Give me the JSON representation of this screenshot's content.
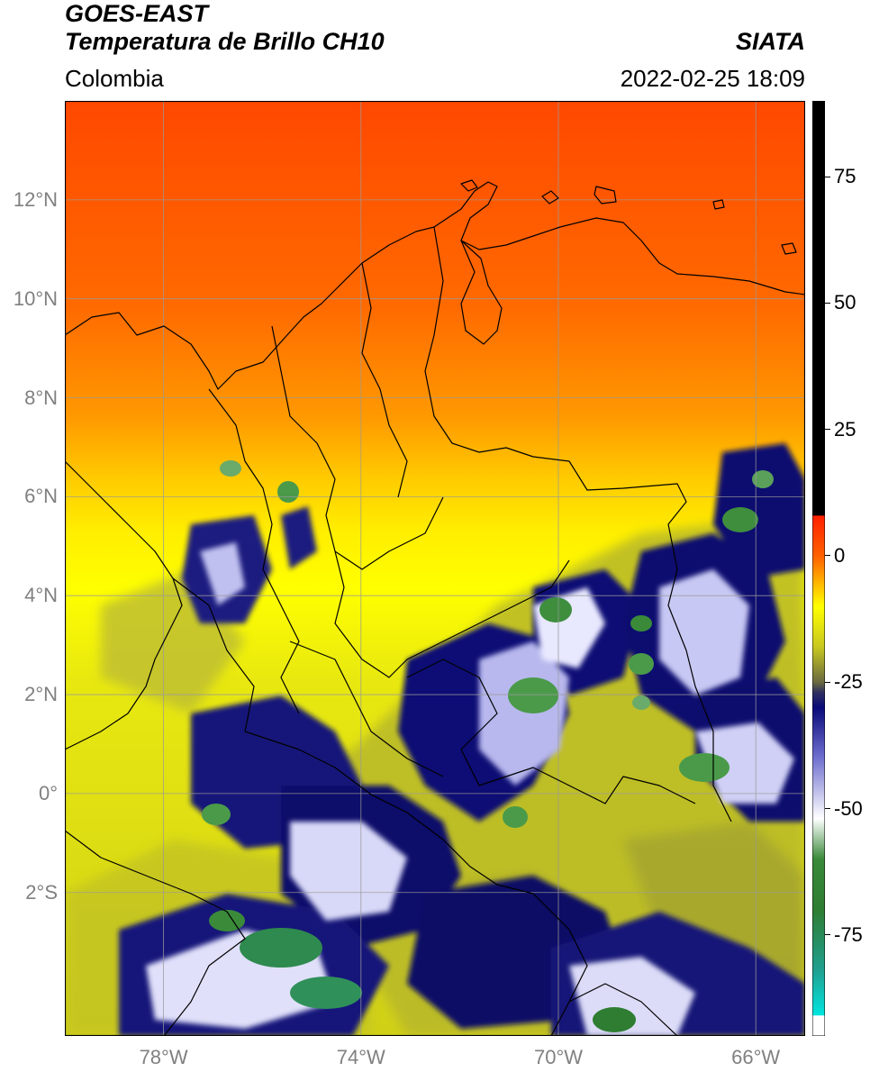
{
  "header": {
    "satellite": "GOES-EAST",
    "product": "Temperatura de Brillo CH10",
    "region": "Colombia",
    "agency": "SIATA",
    "datetime": "2022-02-25 18:09"
  },
  "map": {
    "lon_range": [
      -80,
      -65
    ],
    "lat_range": [
      -4.9,
      14.0
    ],
    "lat_ticks": [
      {
        "value": 12,
        "label": "12°N"
      },
      {
        "value": 10,
        "label": "10°N"
      },
      {
        "value": 8,
        "label": "8°N"
      },
      {
        "value": 6,
        "label": "6°N"
      },
      {
        "value": 4,
        "label": "4°N"
      },
      {
        "value": 2,
        "label": "2°N"
      },
      {
        "value": 0,
        "label": "0°"
      },
      {
        "value": -2,
        "label": "2°S"
      }
    ],
    "lon_ticks": [
      {
        "value": -78,
        "label": "78°W"
      },
      {
        "value": -74,
        "label": "74°W"
      },
      {
        "value": -70,
        "label": "70°W"
      },
      {
        "value": -66,
        "label": "66°W"
      }
    ],
    "grid": true
  },
  "colorbar": {
    "range": [
      -95,
      90
    ],
    "ticks": [
      {
        "value": 75,
        "label": "75"
      },
      {
        "value": 50,
        "label": "50"
      },
      {
        "value": 25,
        "label": "25"
      },
      {
        "value": 0,
        "label": "0"
      },
      {
        "value": -25,
        "label": "-25"
      },
      {
        "value": -50,
        "label": "-50"
      },
      {
        "value": -75,
        "label": "-75"
      }
    ],
    "stops": [
      {
        "value": -95,
        "color": "#ffffff"
      },
      {
        "value": -91,
        "color": "#ffffff"
      },
      {
        "value": -90.9,
        "color": "#00e5e0"
      },
      {
        "value": -82,
        "color": "#20a090"
      },
      {
        "value": -70,
        "color": "#2e7d32"
      },
      {
        "value": -60,
        "color": "#3a8a3a"
      },
      {
        "value": -52,
        "color": "#ffffff"
      },
      {
        "value": -40,
        "color": "#7070d0"
      },
      {
        "value": -30,
        "color": "#0a0a7a"
      },
      {
        "value": -27,
        "color": "#303060"
      },
      {
        "value": -25,
        "color": "#6a6a40"
      },
      {
        "value": -18,
        "color": "#c8c820"
      },
      {
        "value": -10,
        "color": "#ffff00"
      },
      {
        "value": -5,
        "color": "#ffb000"
      },
      {
        "value": 0,
        "color": "#ff6000"
      },
      {
        "value": 7.9,
        "color": "#ff2000"
      },
      {
        "value": 8,
        "color": "#000000"
      },
      {
        "value": 90,
        "color": "#000000"
      }
    ]
  }
}
